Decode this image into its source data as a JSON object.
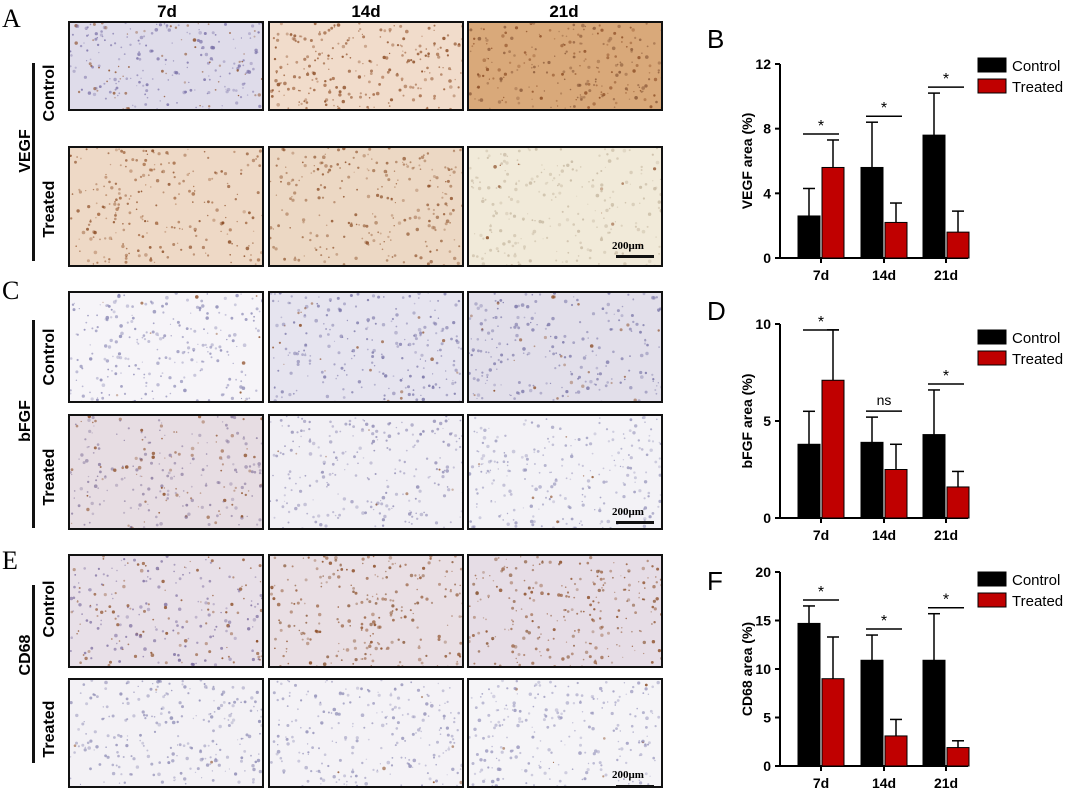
{
  "columns": [
    "7d",
    "14d",
    "21d"
  ],
  "rows": [
    {
      "marker": "VEGF",
      "groups": [
        "Control",
        "Treated"
      ],
      "letter": "A"
    },
    {
      "marker": "bFGF",
      "groups": [
        "Control",
        "Treated"
      ],
      "letter": "C"
    },
    {
      "marker": "CD68",
      "groups": [
        "Control",
        "Treated"
      ],
      "letter": "E"
    }
  ],
  "scale_bar_label": "200μm",
  "chart_data": [
    {
      "letter": "B",
      "type": "bar",
      "categories": [
        "7d",
        "14d",
        "21d"
      ],
      "ylabel": "VEGF area (%)",
      "ylim": [
        0,
        12
      ],
      "yticks": [
        0,
        4,
        8,
        12
      ],
      "series": [
        {
          "name": "Control",
          "color": "#000000",
          "values": [
            2.6,
            5.6,
            7.6
          ],
          "errors": [
            1.7,
            2.8,
            2.6
          ]
        },
        {
          "name": "Treated",
          "color": "#c00000",
          "values": [
            5.6,
            2.2,
            1.6
          ],
          "errors": [
            1.7,
            1.2,
            1.3
          ]
        }
      ],
      "significance": [
        "*",
        "*",
        "*"
      ],
      "legend": "top-right"
    },
    {
      "letter": "D",
      "type": "bar",
      "categories": [
        "7d",
        "14d",
        "21d"
      ],
      "ylabel": "bFGF area (%)",
      "ylim": [
        0,
        10
      ],
      "yticks": [
        0,
        5,
        10
      ],
      "series": [
        {
          "name": "Control",
          "color": "#000000",
          "values": [
            3.8,
            3.9,
            4.3
          ],
          "errors": [
            1.7,
            1.3,
            2.3
          ]
        },
        {
          "name": "Treated",
          "color": "#c00000",
          "values": [
            7.1,
            2.5,
            1.6
          ],
          "errors": [
            2.6,
            1.3,
            0.8
          ]
        }
      ],
      "significance": [
        "*",
        "ns",
        "*"
      ],
      "legend": "top-right"
    },
    {
      "letter": "F",
      "type": "bar",
      "categories": [
        "7d",
        "14d",
        "21d"
      ],
      "ylabel": "CD68 area (%)",
      "ylim": [
        0,
        20
      ],
      "yticks": [
        0,
        5,
        10,
        15,
        20
      ],
      "series": [
        {
          "name": "Control",
          "color": "#000000",
          "values": [
            14.7,
            10.9,
            10.9
          ],
          "errors": [
            1.8,
            2.6,
            4.8
          ]
        },
        {
          "name": "Treated",
          "color": "#c00000",
          "values": [
            9.0,
            3.1,
            1.9
          ],
          "errors": [
            4.3,
            1.7,
            0.7
          ]
        }
      ],
      "significance": [
        "*",
        "*",
        "*"
      ],
      "legend": "top-right"
    }
  ]
}
